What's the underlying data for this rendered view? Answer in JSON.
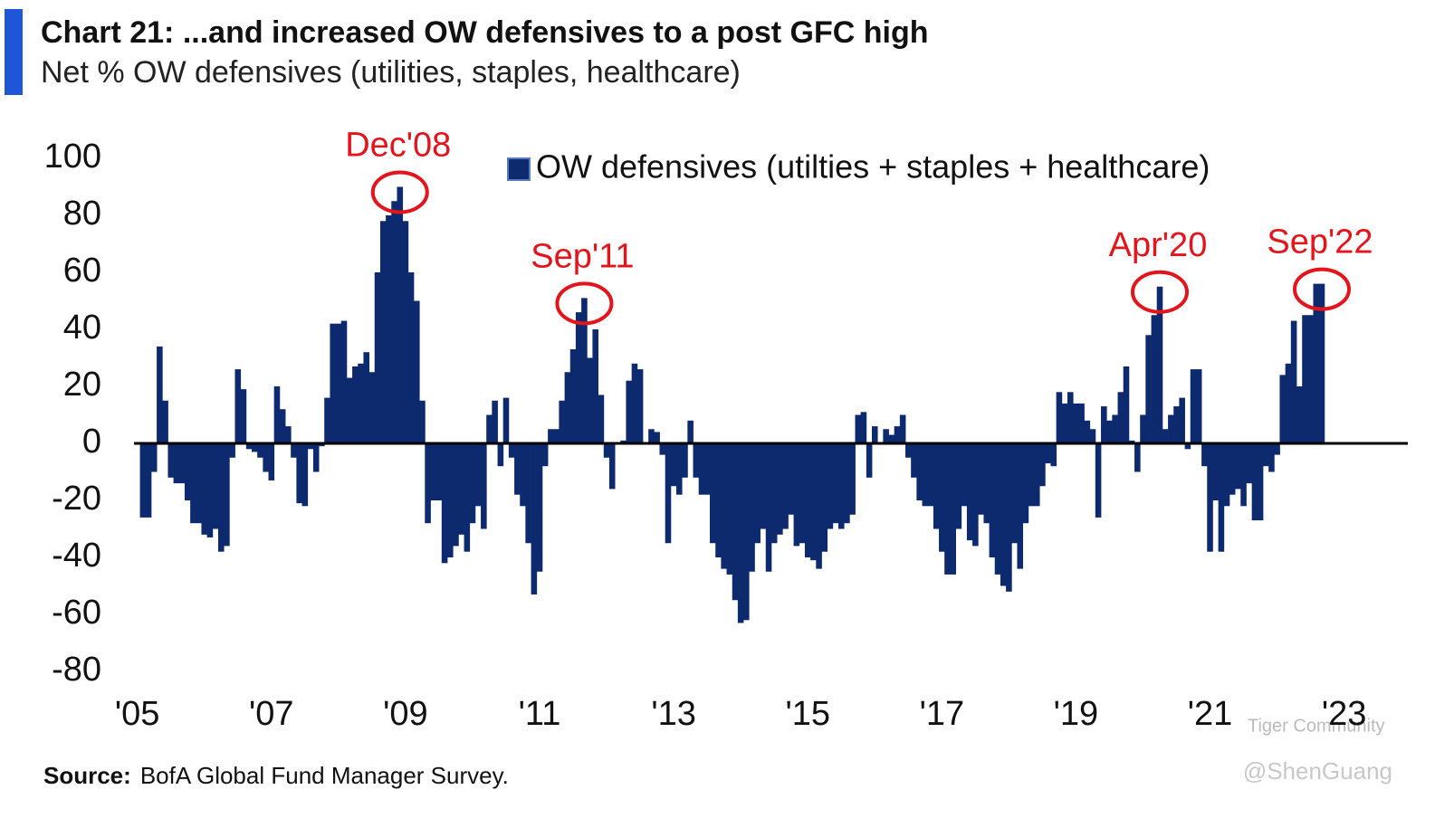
{
  "chart_data": {
    "type": "bar",
    "title": "Chart 21: ...and increased OW defensives to a post GFC high",
    "subtitle": "Net % OW defensives (utilities, staples, healthcare)",
    "source_label": "Source:",
    "source": "BofA Global Fund Manager Survey.",
    "watermark": [
      "Tiger Community",
      "@ShenGuang"
    ],
    "legend": "top-center",
    "grid": false,
    "x": [
      2005.083,
      2005.167,
      2005.25,
      2005.333,
      2005.417,
      2005.5,
      2005.583,
      2005.667,
      2005.75,
      2005.833,
      2005.917,
      2006,
      2006.083,
      2006.167,
      2006.25,
      2006.333,
      2006.417,
      2006.5,
      2006.583,
      2006.667,
      2006.75,
      2006.833,
      2006.917,
      2007,
      2007.083,
      2007.167,
      2007.25,
      2007.333,
      2007.417,
      2007.5,
      2007.583,
      2007.667,
      2007.75,
      2007.833,
      2007.917,
      2008,
      2008.083,
      2008.167,
      2008.25,
      2008.333,
      2008.417,
      2008.5,
      2008.583,
      2008.667,
      2008.75,
      2008.833,
      2008.917,
      2009,
      2009.083,
      2009.167,
      2009.25,
      2009.333,
      2009.417,
      2009.5,
      2009.583,
      2009.667,
      2009.75,
      2009.833,
      2009.917,
      2010,
      2010.083,
      2010.167,
      2010.25,
      2010.333,
      2010.417,
      2010.5,
      2010.583,
      2010.667,
      2010.75,
      2010.833,
      2010.917,
      2011,
      2011.083,
      2011.167,
      2011.25,
      2011.333,
      2011.417,
      2011.5,
      2011.583,
      2011.667,
      2011.75,
      2011.833,
      2011.917,
      2012,
      2012.083,
      2012.167,
      2012.25,
      2012.333,
      2012.417,
      2012.5,
      2012.583,
      2012.667,
      2012.75,
      2012.833,
      2012.917,
      2013,
      2013.083,
      2013.167,
      2013.25,
      2013.333,
      2013.417,
      2013.5,
      2013.583,
      2013.667,
      2013.75,
      2013.833,
      2013.917,
      2014,
      2014.083,
      2014.167,
      2014.25,
      2014.333,
      2014.417,
      2014.5,
      2014.583,
      2014.667,
      2014.75,
      2014.833,
      2014.917,
      2015,
      2015.083,
      2015.167,
      2015.25,
      2015.333,
      2015.417,
      2015.5,
      2015.583,
      2015.667,
      2015.75,
      2015.833,
      2015.917,
      2016,
      2016.083,
      2016.167,
      2016.25,
      2016.333,
      2016.417,
      2016.5,
      2016.583,
      2016.667,
      2016.75,
      2016.833,
      2016.917,
      2017,
      2017.083,
      2017.167,
      2017.25,
      2017.333,
      2017.417,
      2017.5,
      2017.583,
      2017.667,
      2017.75,
      2017.833,
      2017.917,
      2018,
      2018.083,
      2018.167,
      2018.25,
      2018.333,
      2018.417,
      2018.5,
      2018.583,
      2018.667,
      2018.75,
      2018.833,
      2018.917,
      2019,
      2019.083,
      2019.167,
      2019.25,
      2019.333,
      2019.417,
      2019.5,
      2019.583,
      2019.667,
      2019.75,
      2019.833,
      2019.917,
      2020,
      2020.083,
      2020.167,
      2020.25,
      2020.333,
      2020.417,
      2020.5,
      2020.583,
      2020.667,
      2020.75,
      2020.833,
      2020.917,
      2021,
      2021.083,
      2021.167,
      2021.25,
      2021.333,
      2021.417,
      2021.5,
      2021.583,
      2021.667,
      2021.75,
      2021.833,
      2021.917,
      2022,
      2022.083,
      2022.167,
      2022.25,
      2022.333,
      2022.417,
      2022.5,
      2022.583,
      2022.667
    ],
    "series": [
      {
        "name": "OW defensives (utilties + staples + healthcare)",
        "color": "#0d2a6e",
        "values": [
          -26,
          -26,
          -10,
          34,
          15,
          -12,
          -14,
          -14,
          -20,
          -28,
          -28,
          -32,
          -33,
          -30,
          -38,
          -36,
          -5,
          26,
          19,
          -2,
          -3,
          -5,
          -10,
          -13,
          20,
          12,
          6,
          -5,
          -21,
          -22,
          -2,
          -10,
          -1,
          16,
          42,
          42,
          43,
          23,
          27,
          28,
          32,
          25,
          60,
          78,
          80,
          85,
          90,
          78,
          60,
          50,
          15,
          -28,
          -20,
          -20,
          -42,
          -40,
          -36,
          -32,
          -38,
          -28,
          -22,
          -30,
          10,
          15,
          -8,
          16,
          -5,
          -18,
          -22,
          -35,
          -53,
          -45,
          -8,
          5,
          5,
          15,
          25,
          33,
          46,
          51,
          30,
          40,
          17,
          -5,
          -16,
          0,
          1,
          22,
          28,
          26,
          0,
          5,
          4,
          -4,
          -35,
          -15,
          -18,
          -12,
          8,
          -12,
          -18,
          -18,
          -35,
          -40,
          -44,
          -46,
          -55,
          -63,
          -62,
          -45,
          -35,
          -30,
          -45,
          -35,
          -32,
          -30,
          -25,
          -36,
          -35,
          -40,
          -41,
          -44,
          -38,
          -30,
          -28,
          -30,
          -28,
          -25,
          10,
          11,
          -12,
          6,
          0,
          5,
          3,
          6,
          10,
          -5,
          -12,
          -20,
          -22,
          -22,
          -30,
          -38,
          -46,
          -46,
          -30,
          -22,
          -34,
          -36,
          -25,
          -28,
          -40,
          -46,
          -50,
          -52,
          -35,
          -44,
          -28,
          -22,
          -22,
          -15,
          -7,
          -8,
          18,
          14,
          18,
          14,
          14,
          8,
          5,
          -26,
          13,
          8,
          10,
          18,
          27,
          1,
          -10,
          10,
          38,
          45,
          55,
          5,
          10,
          13,
          16,
          -2,
          26,
          26,
          -8,
          -38,
          -20,
          -38,
          -22,
          -18,
          -16,
          -22,
          -14,
          -27,
          -27,
          -8,
          -10,
          -4,
          24,
          28,
          43,
          20,
          45,
          45,
          56,
          56
        ]
      }
    ],
    "annotations": [
      {
        "text": "Dec'08",
        "x": 2008.917,
        "color": "#e3141b"
      },
      {
        "text": "Sep'11",
        "x": 2011.667,
        "color": "#e3141b"
      },
      {
        "text": "Apr'20",
        "x": 2020.25,
        "color": "#e3141b"
      },
      {
        "text": "Sep'22",
        "x": 2022.667,
        "color": "#e3141b"
      }
    ],
    "xlim": [
      2004.95,
      2023.95
    ],
    "xticks": [
      {
        "value": 2005,
        "label": "'05"
      },
      {
        "value": 2007,
        "label": "'07"
      },
      {
        "value": 2009,
        "label": "'09"
      },
      {
        "value": 2011,
        "label": "'11"
      },
      {
        "value": 2013,
        "label": "'13"
      },
      {
        "value": 2015,
        "label": "'15"
      },
      {
        "value": 2017,
        "label": "'17"
      },
      {
        "value": 2019,
        "label": "'19"
      },
      {
        "value": 2021,
        "label": "'21"
      },
      {
        "value": 2023,
        "label": "'23"
      }
    ],
    "ylim": [
      -80,
      100
    ],
    "yticks": [
      -80,
      -60,
      -40,
      -20,
      0,
      20,
      40,
      60,
      80,
      100
    ]
  }
}
